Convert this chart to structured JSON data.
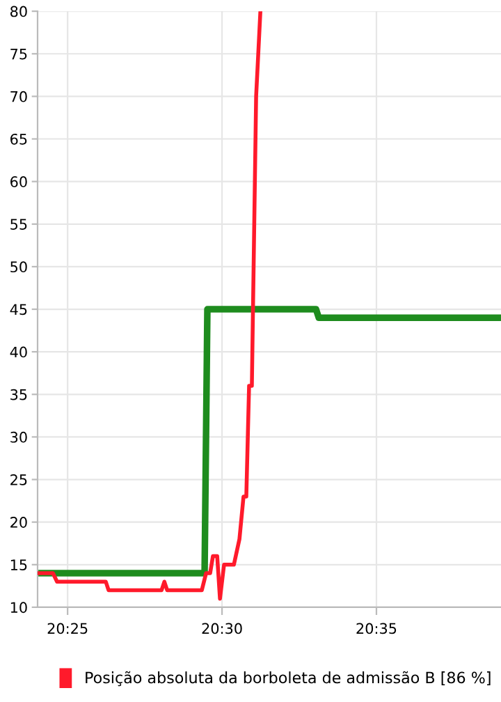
{
  "chart_data": {
    "type": "line",
    "xlim": [
      20.4005,
      20.6505
    ],
    "ylim": [
      10,
      80
    ],
    "xticks": [
      {
        "value": 20.4167,
        "label": "20:25"
      },
      {
        "value": 20.5,
        "label": "20:30"
      },
      {
        "value": 20.5833,
        "label": "20:35"
      }
    ],
    "yticks": [
      10,
      15,
      20,
      25,
      30,
      35,
      40,
      45,
      50,
      55,
      60,
      65,
      70,
      75,
      80
    ],
    "grid": true,
    "legend": "bottom",
    "marker": "none",
    "line_style": "solid",
    "series": [
      {
        "name": "Posição absoluta da borboleta de admissão B [86 %]",
        "color": "#ff1a2b",
        "x": [
          20.4013,
          20.4088,
          20.411,
          20.4373,
          20.4388,
          20.4674,
          20.4689,
          20.4704,
          20.4891,
          20.4914,
          20.4936,
          20.4951,
          20.4974,
          20.4989,
          20.5011,
          20.5064,
          20.5094,
          20.5116,
          20.5131,
          20.5146,
          20.5161,
          20.5184,
          20.5207
        ],
        "values": [
          14,
          14,
          13,
          13,
          12,
          12,
          13,
          12,
          12,
          14,
          14,
          16,
          16,
          11,
          15,
          15,
          18,
          23,
          23,
          36,
          36,
          70,
          80
        ]
      },
      {
        "color": "#1e8c1e",
        "x": [
          20.4013,
          20.4906,
          20.4921,
          20.5507,
          20.5522,
          20.6505
        ],
        "values": [
          14,
          14,
          45,
          45,
          44,
          44
        ]
      }
    ]
  }
}
